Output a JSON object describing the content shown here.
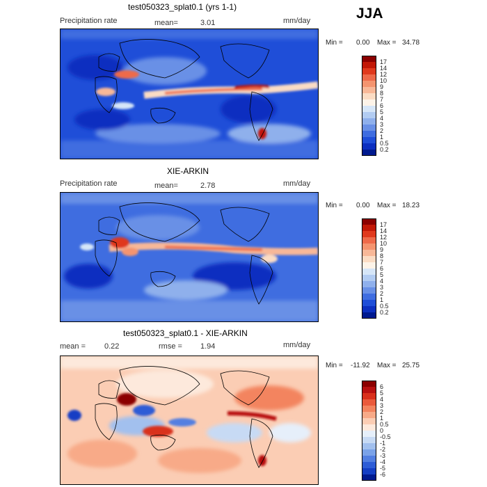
{
  "season": "JJA",
  "panels": [
    {
      "id": "model",
      "title": "test050323_splat0.1 (yrs 1-1)",
      "variable": "Precipitation rate",
      "stat1_label": "mean=",
      "stat1_value": "3.01",
      "stat2_label": "",
      "stat2_value": "",
      "units": "mm/day",
      "min_label": "Min =",
      "min_value": "0.00",
      "max_label": "Max =",
      "max_value": "34.78",
      "colorbar_labels": [
        "17",
        "14",
        "12",
        "10",
        "9",
        "8",
        "7",
        "6",
        "5",
        "4",
        "3",
        "2",
        "1",
        "0.5",
        "0.2"
      ],
      "colorbar_colors": [
        "#8b0000",
        "#c21807",
        "#e0391d",
        "#ee6a4a",
        "#f4946f",
        "#f8b898",
        "#fbdcc4",
        "#fdf3e8",
        "#d6e6f8",
        "#b2ccf2",
        "#8fb0ec",
        "#6990e6",
        "#3f6de0",
        "#1f4ed8",
        "#0c2fc0",
        "#001a8f"
      ]
    },
    {
      "id": "obs",
      "title": "XIE-ARKIN",
      "variable": "Precipitation rate",
      "stat1_label": "mean=",
      "stat1_value": "2.78",
      "stat2_label": "",
      "stat2_value": "",
      "units": "mm/day",
      "min_label": "Min =",
      "min_value": "0.00",
      "max_label": "Max =",
      "max_value": "18.23",
      "colorbar_labels": [
        "17",
        "14",
        "12",
        "10",
        "9",
        "8",
        "7",
        "6",
        "5",
        "4",
        "3",
        "2",
        "1",
        "0.5",
        "0.2"
      ],
      "colorbar_colors": [
        "#8b0000",
        "#c21807",
        "#e0391d",
        "#ee6a4a",
        "#f4946f",
        "#f8b898",
        "#fbdcc4",
        "#fdf3e8",
        "#d6e6f8",
        "#b2ccf2",
        "#8fb0ec",
        "#6990e6",
        "#3f6de0",
        "#1f4ed8",
        "#0c2fc0",
        "#001a8f"
      ]
    },
    {
      "id": "diff",
      "title": "test050323_splat0.1 - XIE-ARKIN",
      "variable": "",
      "stat1_label": "mean =",
      "stat1_value": "0.22",
      "stat2_label": "rmse =",
      "stat2_value": "1.94",
      "units": "mm/day",
      "min_label": "Min =",
      "min_value": "-11.92",
      "max_label": "Max =",
      "max_value": "25.75",
      "colorbar_labels": [
        "6",
        "5",
        "4",
        "3",
        "2",
        "1",
        "0.5",
        "0",
        "-0.5",
        "-1",
        "-2",
        "-3",
        "-4",
        "-5",
        "-6"
      ],
      "colorbar_colors": [
        "#8b0000",
        "#b81010",
        "#d9301c",
        "#ea5a3c",
        "#f3845f",
        "#f8aa88",
        "#fbcdb4",
        "#fde9dc",
        "#e6effa",
        "#c7daf4",
        "#a2c0ee",
        "#7aa2e8",
        "#527fe1",
        "#2d5cd6",
        "#143ec4",
        "#001a8f"
      ]
    }
  ]
}
